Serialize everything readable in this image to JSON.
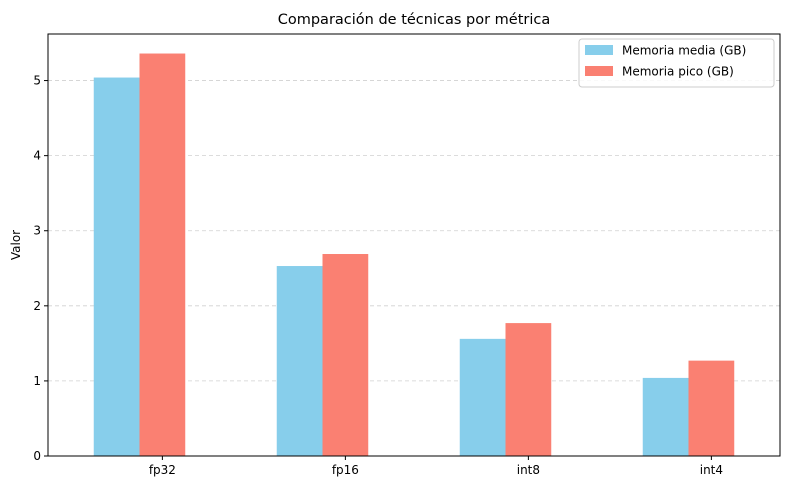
{
  "chart_data": {
    "type": "bar",
    "title": "Comparación de técnicas por métrica",
    "xlabel": "",
    "ylabel": "Valor",
    "categories": [
      "fp32",
      "fp16",
      "int8",
      "int4"
    ],
    "series": [
      {
        "name": "Memoria media (GB)",
        "color": "#87CEEB",
        "values": [
          5.04,
          2.53,
          1.56,
          1.04
        ]
      },
      {
        "name": "Memoria pico (GB)",
        "color": "#FA8072",
        "values": [
          5.36,
          2.69,
          1.77,
          1.27
        ]
      }
    ],
    "ylim": [
      0,
      5.62
    ],
    "yticks": [
      "0",
      "1",
      "2",
      "3",
      "4",
      "5"
    ],
    "grid": "y-dashed",
    "legend_position": "top-right"
  }
}
